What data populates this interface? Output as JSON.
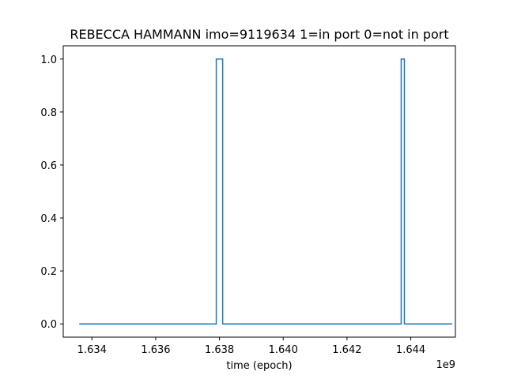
{
  "chart_data": {
    "type": "line",
    "title": "REBECCA HAMMANN imo=9119634 1=in port 0=not in port",
    "xlabel": "time (epoch)",
    "ylabel": "",
    "x_offset_label": "1e9",
    "xlim": [
      1.6331,
      1.6454
    ],
    "ylim": [
      -0.05,
      1.05
    ],
    "xticks": [
      1.634,
      1.636,
      1.638,
      1.64,
      1.642,
      1.644
    ],
    "xtick_labels": [
      "1.634",
      "1.636",
      "1.638",
      "1.640",
      "1.642",
      "1.644"
    ],
    "yticks": [
      0.0,
      0.2,
      0.4,
      0.6,
      0.8,
      1.0
    ],
    "ytick_labels": [
      "0.0",
      "0.2",
      "0.4",
      "0.6",
      "0.8",
      "1.0"
    ],
    "grid": false,
    "series": [
      {
        "color": "#1f77b4",
        "step": true,
        "x": [
          1.6336,
          1.6379,
          1.6379,
          1.6381,
          1.6381,
          1.6437,
          1.6437,
          1.6438,
          1.6438,
          1.6453
        ],
        "y": [
          0,
          0,
          1,
          1,
          0,
          0,
          1,
          1,
          0,
          0
        ]
      }
    ]
  }
}
